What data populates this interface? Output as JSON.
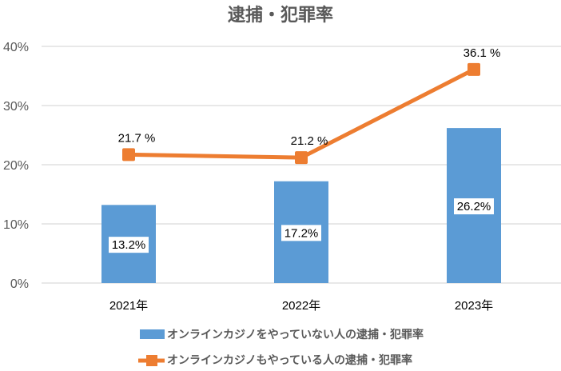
{
  "chart_data": {
    "type": "bar+line",
    "title": "逮捕・犯罪率",
    "categories": [
      "2021年",
      "2022年",
      "2023年"
    ],
    "ylim": [
      0,
      40
    ],
    "yticks": [
      0,
      10,
      20,
      30,
      40
    ],
    "ytick_labels": [
      "0%",
      "10%",
      "20%",
      "30%",
      "40%"
    ],
    "grid": true,
    "legend_position": "bottom",
    "series": [
      {
        "name": "オンラインカジノをやっていない人の逮捕・犯罪率",
        "type": "bar",
        "color": "#5B9BD5",
        "values": [
          13.2,
          17.2,
          26.2
        ],
        "labels": [
          "13.2%",
          "17.2%",
          "26.2%"
        ]
      },
      {
        "name": "オンラインカジノもやっている人の逮捕・犯罪率",
        "type": "line",
        "color": "#ED7D31",
        "values": [
          21.7,
          21.2,
          36.1
        ],
        "labels": [
          "21.7 %",
          "21.2 %",
          "36.1 %"
        ]
      }
    ]
  }
}
